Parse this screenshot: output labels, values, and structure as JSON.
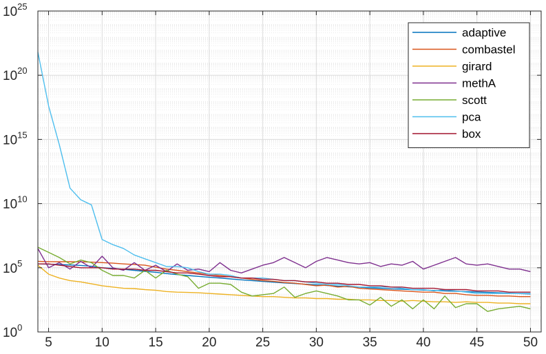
{
  "chart_data": {
    "type": "line",
    "title": "",
    "xlabel": "",
    "ylabel": "",
    "xlim": [
      4,
      51
    ],
    "ylim_exponent": [
      0,
      25
    ],
    "yscale": "log",
    "grid": true,
    "minor_grid": true,
    "legend_position": "top-right",
    "x_ticks": [
      5,
      10,
      15,
      20,
      25,
      30,
      35,
      40,
      45,
      50
    ],
    "x_tick_labels": [
      "5",
      "10",
      "15",
      "20",
      "25",
      "30",
      "35",
      "40",
      "45",
      "50"
    ],
    "y_ticks_exponent": [
      0,
      5,
      10,
      15,
      20,
      25
    ],
    "y_tick_base": "10",
    "y_tick_exponents": [
      "0",
      "5",
      "10",
      "15",
      "20",
      "25"
    ],
    "x": [
      4,
      5,
      6,
      7,
      8,
      9,
      10,
      11,
      12,
      13,
      14,
      15,
      16,
      17,
      18,
      19,
      20,
      21,
      22,
      23,
      24,
      25,
      26,
      27,
      28,
      29,
      30,
      31,
      32,
      33,
      34,
      35,
      36,
      37,
      38,
      39,
      40,
      41,
      42,
      43,
      44,
      45,
      46,
      47,
      48,
      49,
      50
    ],
    "series_note_log10_values": true,
    "series": [
      {
        "name": "adaptive",
        "color": "#0072BD",
        "log10_values": [
          5.3,
          5.28,
          5.25,
          5.22,
          5.18,
          5.12,
          5.0,
          4.95,
          4.88,
          4.8,
          4.72,
          4.65,
          4.55,
          4.47,
          4.4,
          4.33,
          4.26,
          4.2,
          4.13,
          4.06,
          4.0,
          3.94,
          3.88,
          3.82,
          3.77,
          3.72,
          3.67,
          3.62,
          3.57,
          3.52,
          3.48,
          3.44,
          3.4,
          3.36,
          3.33,
          3.29,
          3.26,
          3.23,
          3.2,
          3.17,
          3.14,
          3.11,
          3.08,
          3.05,
          3.02,
          2.99,
          2.96
        ]
      },
      {
        "name": "combastel",
        "color": "#D95319",
        "log10_values": [
          5.5,
          5.48,
          5.47,
          5.47,
          5.46,
          5.44,
          5.4,
          5.36,
          5.3,
          5.25,
          5.2,
          5.05,
          4.9,
          4.8,
          4.7,
          4.6,
          4.5,
          4.4,
          4.3,
          4.2,
          4.1,
          4.0,
          3.95,
          3.85,
          3.8,
          3.7,
          3.6,
          3.65,
          3.5,
          3.55,
          3.4,
          3.35,
          3.3,
          3.25,
          3.2,
          3.15,
          3.1,
          3.1,
          3.0,
          3.0,
          2.9,
          2.85,
          2.85,
          2.8,
          2.8,
          2.75,
          2.75
        ]
      },
      {
        "name": "girard",
        "color": "#EDB120",
        "log10_values": [
          5.2,
          4.5,
          4.2,
          4.0,
          3.9,
          3.75,
          3.6,
          3.5,
          3.4,
          3.38,
          3.3,
          3.25,
          3.15,
          3.1,
          3.08,
          3.05,
          3.0,
          2.95,
          2.9,
          2.85,
          2.8,
          2.75,
          2.75,
          2.7,
          2.65,
          2.65,
          2.6,
          2.6,
          2.55,
          2.55,
          2.5,
          2.5,
          2.45,
          2.45,
          2.4,
          2.45,
          2.4,
          2.35,
          2.35,
          2.3,
          2.35,
          2.3,
          2.3,
          2.25,
          2.25,
          2.2,
          2.2
        ]
      },
      {
        "name": "methA",
        "color": "#7E2F8E",
        "log10_values": [
          6.5,
          5.0,
          5.4,
          4.9,
          5.5,
          5.0,
          5.9,
          5.0,
          4.8,
          5.4,
          4.8,
          5.2,
          4.7,
          5.3,
          4.8,
          4.9,
          4.7,
          5.4,
          4.8,
          4.6,
          4.9,
          5.2,
          5.4,
          5.8,
          5.4,
          5.0,
          5.5,
          5.8,
          5.6,
          5.4,
          5.3,
          5.4,
          5.1,
          5.3,
          5.2,
          5.5,
          4.9,
          5.2,
          5.5,
          5.8,
          5.3,
          5.2,
          5.3,
          5.1,
          4.9,
          4.9,
          4.7
        ]
      },
      {
        "name": "scott",
        "color": "#77AC30",
        "log10_values": [
          6.6,
          6.2,
          5.8,
          5.3,
          5.6,
          5.4,
          4.8,
          4.4,
          4.4,
          4.2,
          4.8,
          4.2,
          4.8,
          4.5,
          4.3,
          3.4,
          3.8,
          3.8,
          3.7,
          3.1,
          2.8,
          2.9,
          3.0,
          3.5,
          2.7,
          3.0,
          3.2,
          3.0,
          2.8,
          2.5,
          2.5,
          2.1,
          2.7,
          2.0,
          2.5,
          1.8,
          2.5,
          1.8,
          2.8,
          1.9,
          2.2,
          2.2,
          1.6,
          1.8,
          1.9,
          2.0,
          1.8
        ]
      },
      {
        "name": "pca",
        "color": "#4DBEEE",
        "log10_values": [
          21.8,
          17.6,
          14.6,
          11.2,
          10.3,
          9.9,
          7.2,
          6.8,
          6.5,
          6.0,
          5.7,
          5.4,
          5.1,
          5.1,
          5.0,
          4.7,
          4.5,
          4.5,
          4.4,
          4.2,
          4.2,
          4.2,
          4.1,
          4.0,
          4.0,
          3.9,
          3.8,
          3.7,
          3.7,
          3.6,
          3.5,
          3.5,
          3.5,
          3.5,
          3.4,
          3.3,
          3.3,
          3.2,
          3.3,
          3.2,
          3.1,
          3.0,
          3.0,
          3.0,
          3.0,
          3.0,
          3.0
        ]
      },
      {
        "name": "box",
        "color": "#A2142F",
        "log10_values": [
          5.3,
          5.3,
          5.2,
          5.1,
          5.0,
          5.0,
          5.0,
          4.9,
          4.9,
          4.9,
          4.8,
          4.8,
          4.7,
          4.6,
          4.6,
          4.5,
          4.4,
          4.3,
          4.3,
          4.2,
          4.2,
          4.1,
          4.1,
          4.0,
          4.0,
          3.9,
          3.9,
          3.8,
          3.8,
          3.7,
          3.7,
          3.6,
          3.6,
          3.5,
          3.5,
          3.4,
          3.4,
          3.4,
          3.3,
          3.3,
          3.3,
          3.2,
          3.2,
          3.2,
          3.1,
          3.1,
          3.1
        ]
      }
    ]
  }
}
